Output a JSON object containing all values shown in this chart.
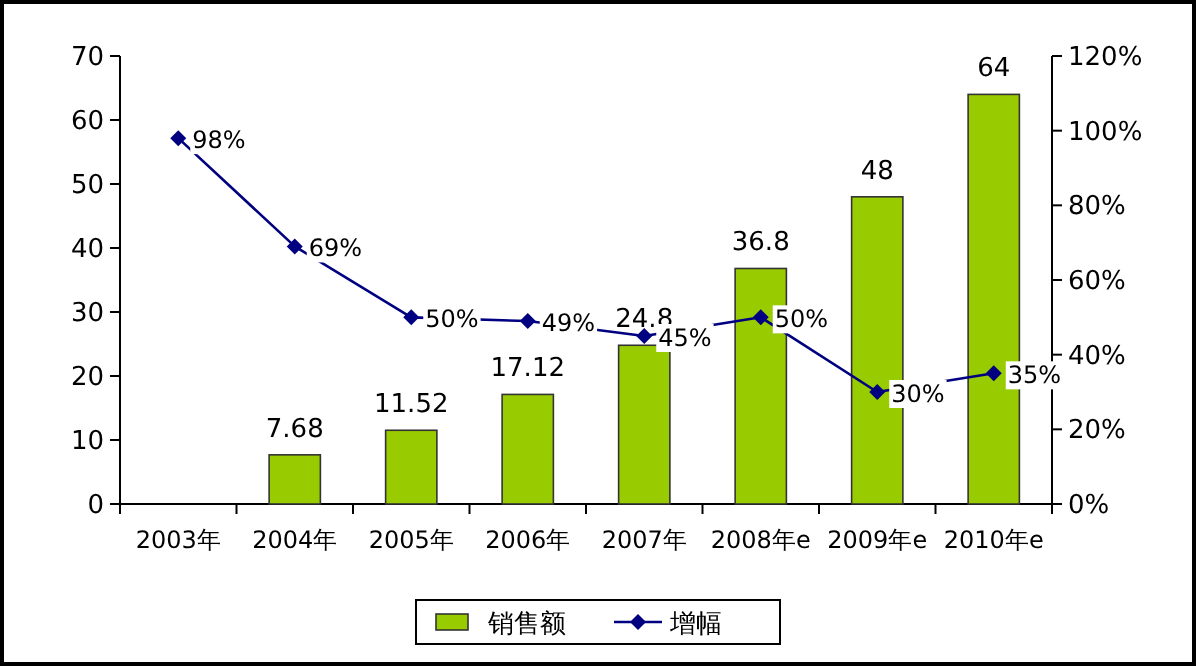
{
  "chart_data": {
    "type": "bar",
    "categories": [
      "2003年",
      "2004年",
      "2005年",
      "2006年",
      "2007年",
      "2008年e",
      "2009年e",
      "2010年e"
    ],
    "series": [
      {
        "name": "销售额",
        "color": "#99cc00",
        "values": [
          null,
          7.68,
          11.52,
          17.12,
          24.8,
          36.8,
          48,
          64
        ],
        "value_labels": [
          null,
          "7.68",
          "11.52",
          "17.12",
          "24.8",
          "36.8",
          "48",
          "64"
        ]
      },
      {
        "name": "增幅",
        "type": "line",
        "axis": "y2",
        "color": "#000080",
        "marker": "diamond",
        "values": [
          98,
          69,
          50,
          49,
          45,
          50,
          30,
          35
        ],
        "value_labels": [
          "98%",
          "69%",
          "50%",
          "49%",
          "45%",
          "50%",
          "30%",
          "35%"
        ]
      }
    ],
    "ylim": [
      0,
      70
    ],
    "yticks": [
      0,
      10,
      20,
      30,
      40,
      50,
      60,
      70
    ],
    "y2lim": [
      0,
      120
    ],
    "y2ticks": [
      {
        "value": 0,
        "label": "0%"
      },
      {
        "value": 20,
        "label": "20%"
      },
      {
        "value": 40,
        "label": "40%"
      },
      {
        "value": 60,
        "label": "60%"
      },
      {
        "value": 80,
        "label": "80%"
      },
      {
        "value": 100,
        "label": "100%"
      },
      {
        "value": 120,
        "label": "120%"
      }
    ],
    "grid": false,
    "legend": "bottom"
  }
}
